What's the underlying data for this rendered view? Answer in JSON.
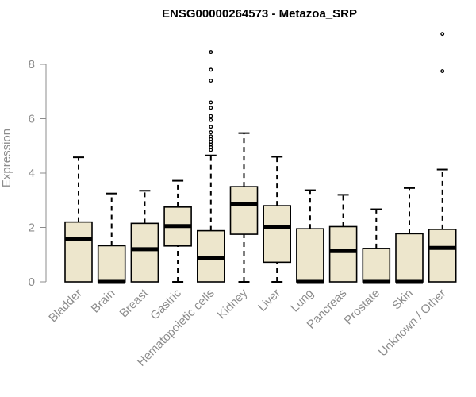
{
  "chart_data": {
    "type": "boxplot",
    "title": "ENSG00000264573 - Metazoa_SRP",
    "xlabel": "",
    "ylabel": "Expression",
    "yticks": [
      0,
      2,
      4,
      6,
      8
    ],
    "ylim": [
      0,
      9.3
    ],
    "grid": false,
    "legend": "none",
    "box_fill": "#ede6cc",
    "categories": [
      "Bladder",
      "Brain",
      "Breast",
      "Gastric",
      "Hematopoietic cells",
      "Kidney",
      "Liver",
      "Lung",
      "Pancreas",
      "Prostate",
      "Skin",
      "Unknown / Other"
    ],
    "boxes": [
      {
        "category": "Bladder",
        "min": 0,
        "q1": 0,
        "median": 1.58,
        "q3": 2.2,
        "max": 4.58,
        "outliers": []
      },
      {
        "category": "Brain",
        "min": 0,
        "q1": 0,
        "median": 0,
        "q3": 1.33,
        "max": 3.25,
        "outliers": []
      },
      {
        "category": "Breast",
        "min": 0,
        "q1": 0,
        "median": 1.2,
        "q3": 2.15,
        "max": 3.35,
        "outliers": []
      },
      {
        "category": "Gastric",
        "min": 0,
        "q1": 1.32,
        "median": 2.05,
        "q3": 2.75,
        "max": 3.72,
        "outliers": []
      },
      {
        "category": "Hematopoietic cells",
        "min": 0,
        "q1": 0,
        "median": 0.88,
        "q3": 1.88,
        "max": 4.65,
        "outliers": [
          4.85,
          4.95,
          5.05,
          5.15,
          5.25,
          5.35,
          5.5,
          5.7,
          5.95,
          6.1,
          6.4,
          6.6,
          7.4,
          7.8,
          8.45
        ]
      },
      {
        "category": "Kidney",
        "min": 0,
        "q1": 1.75,
        "median": 2.87,
        "q3": 3.5,
        "max": 5.47,
        "outliers": []
      },
      {
        "category": "Liver",
        "min": 0,
        "q1": 0.72,
        "median": 2.0,
        "q3": 2.8,
        "max": 4.6,
        "outliers": []
      },
      {
        "category": "Lung",
        "min": 0,
        "q1": 0,
        "median": 0,
        "q3": 1.95,
        "max": 3.37,
        "outliers": []
      },
      {
        "category": "Pancreas",
        "min": 0,
        "q1": 0,
        "median": 1.13,
        "q3": 2.03,
        "max": 3.2,
        "outliers": []
      },
      {
        "category": "Prostate",
        "min": 0,
        "q1": 0,
        "median": 0,
        "q3": 1.23,
        "max": 2.67,
        "outliers": []
      },
      {
        "category": "Skin",
        "min": 0,
        "q1": 0,
        "median": 0,
        "q3": 1.77,
        "max": 3.45,
        "outliers": []
      },
      {
        "category": "Unknown / Other",
        "min": 0,
        "q1": 0,
        "median": 1.25,
        "q3": 1.93,
        "max": 4.13,
        "outliers": [
          7.75,
          9.12
        ]
      }
    ]
  }
}
